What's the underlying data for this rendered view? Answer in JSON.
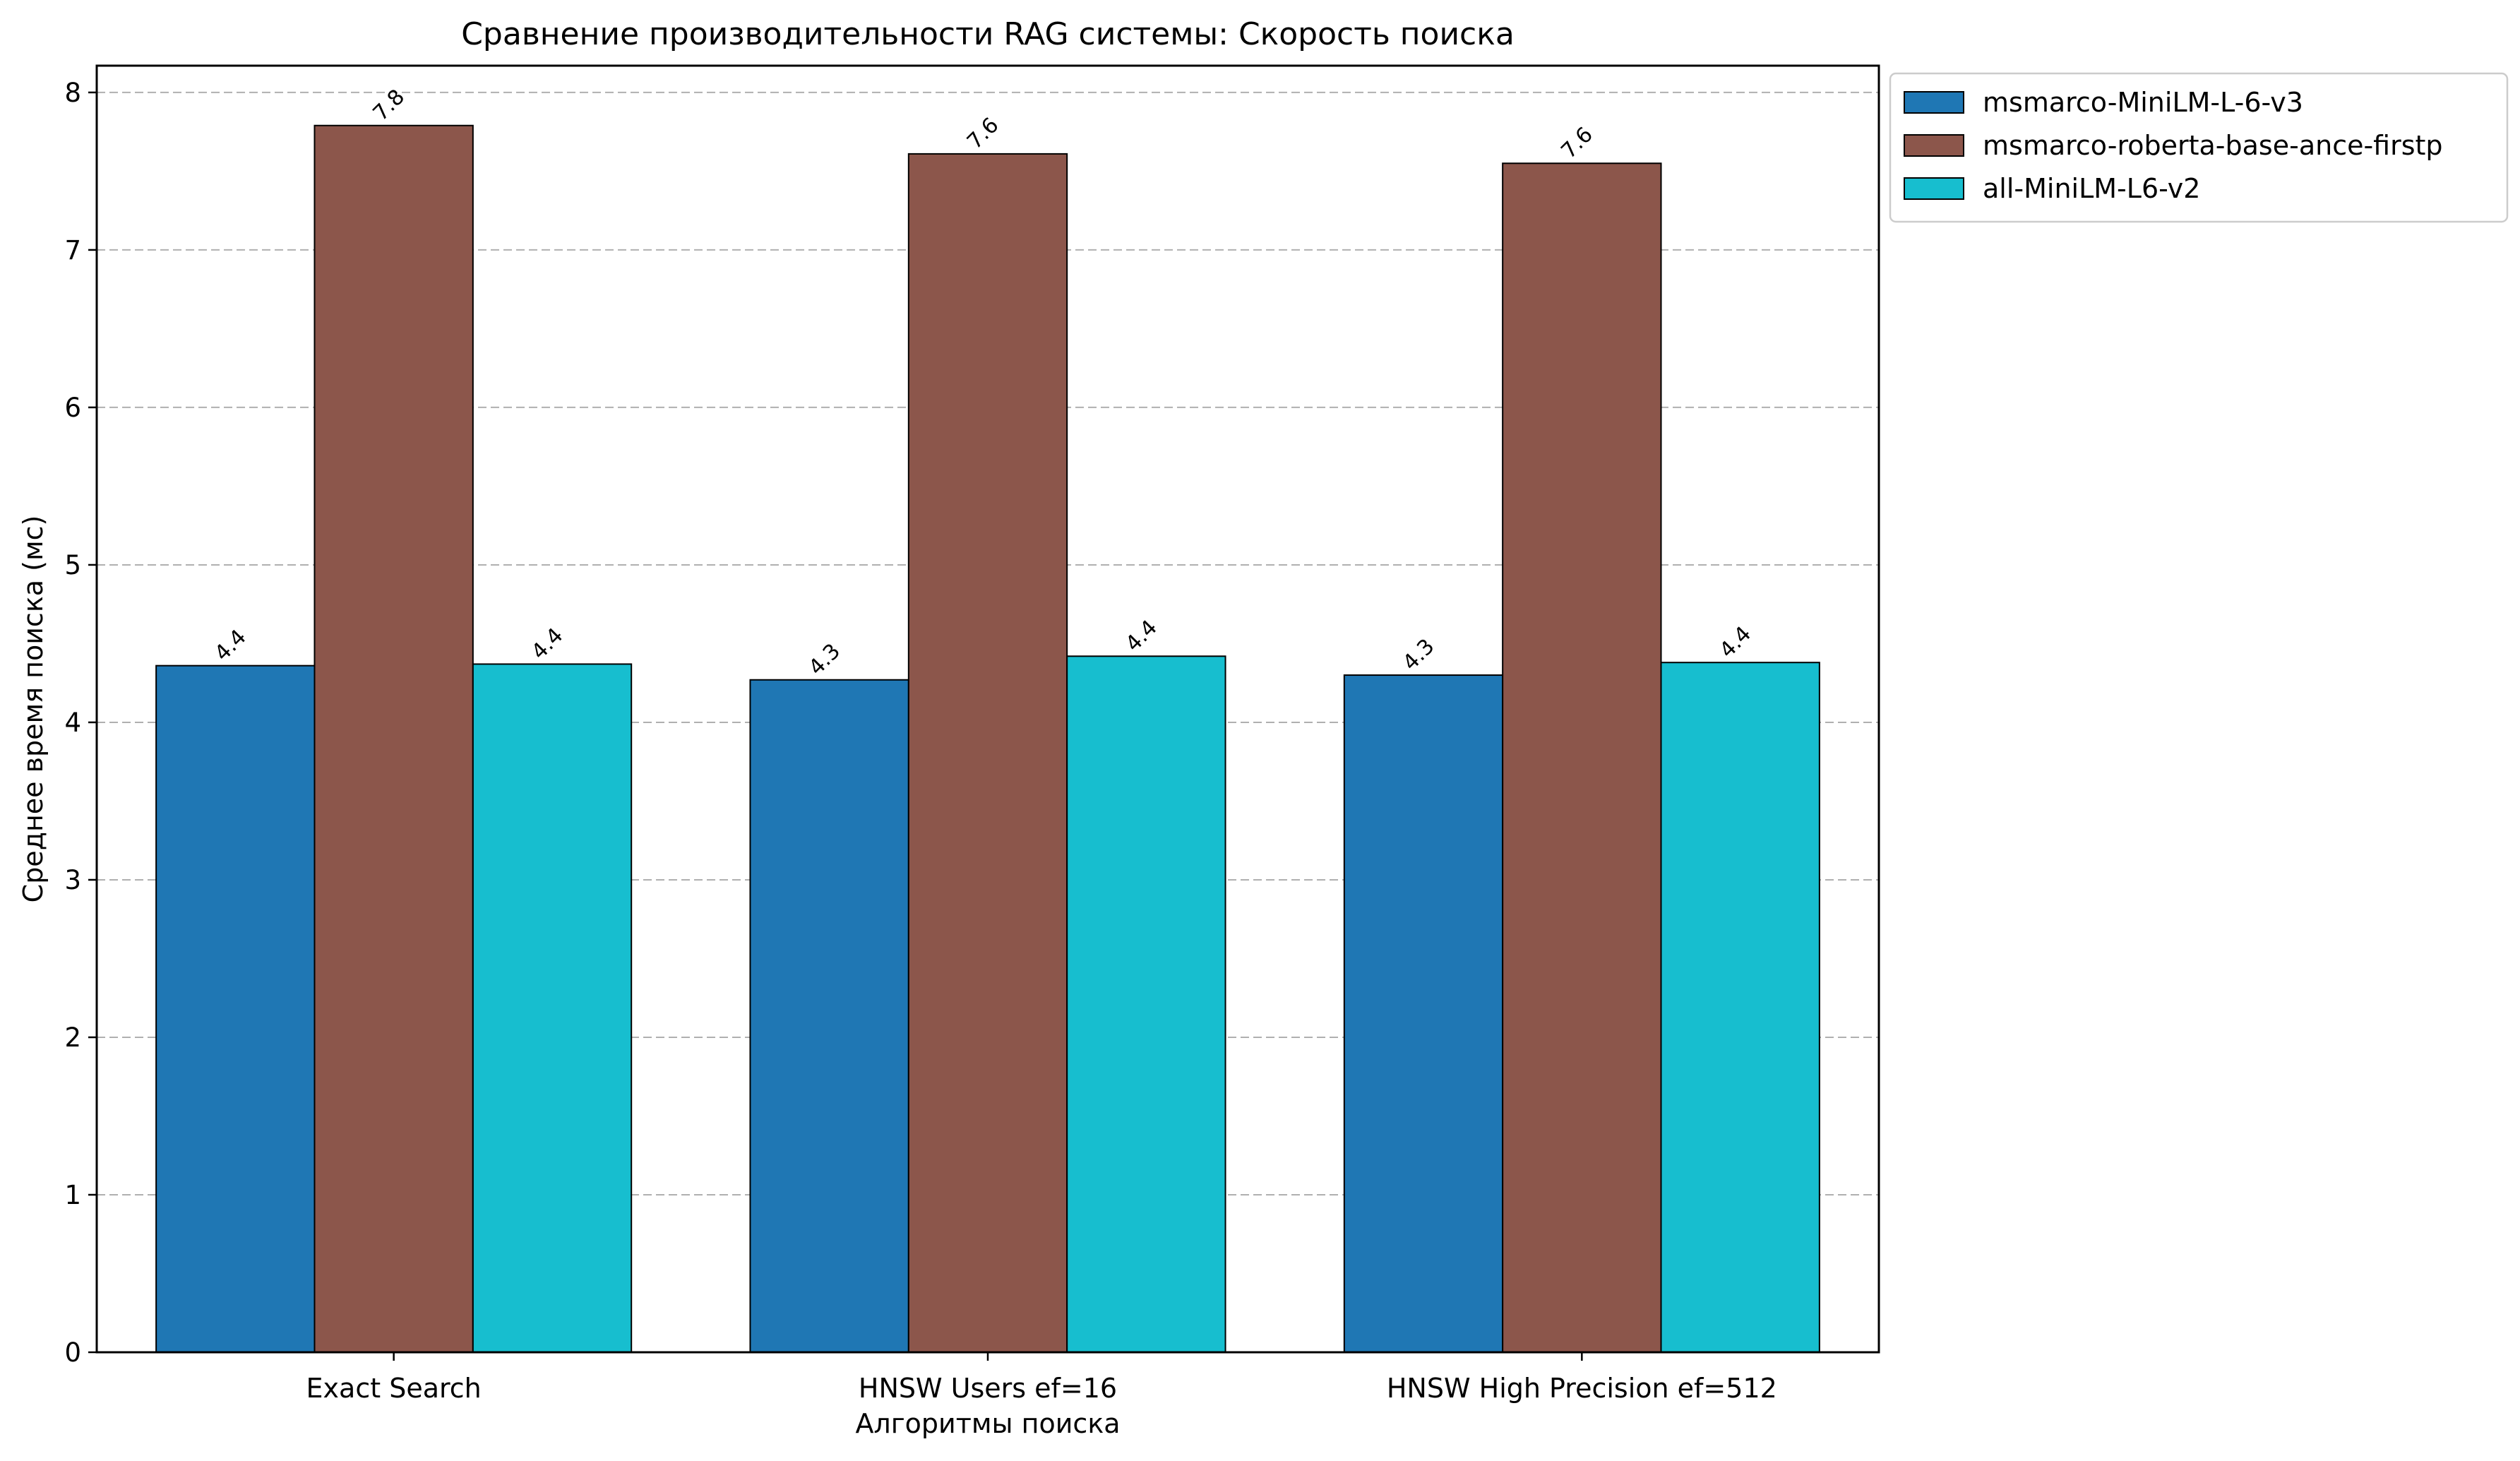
{
  "chart_data": {
    "type": "bar",
    "title": "Сравнение производительности RAG системы: Скорость поиска",
    "xlabel": "Алгоритмы поиска",
    "ylabel": "Среднее время поиска (мс)",
    "categories": [
      "Exact Search",
      "HNSW Users ef=16",
      "HNSW High Precision ef=512"
    ],
    "series": [
      {
        "name": "msmarco-MiniLM-L-6-v3",
        "color": "#1f77b4",
        "values": [
          4.36,
          4.27,
          4.3
        ],
        "labels": [
          "4.4",
          "4.3",
          "4.3"
        ]
      },
      {
        "name": "msmarco-roberta-base-ance-firstp",
        "color": "#8c564b",
        "values": [
          7.79,
          7.61,
          7.55
        ],
        "labels": [
          "7.8",
          "7.6",
          "7.6"
        ]
      },
      {
        "name": "all-MiniLM-L6-v2",
        "color": "#17becf",
        "values": [
          4.37,
          4.42,
          4.38
        ],
        "labels": [
          "4.4",
          "4.4",
          "4.4"
        ]
      }
    ],
    "ylim": [
      0,
      8.17
    ],
    "yticks": [
      0,
      1,
      2,
      3,
      4,
      5,
      6,
      7,
      8
    ],
    "grid": "y-dashed",
    "legend_position": "outside-top-right"
  }
}
